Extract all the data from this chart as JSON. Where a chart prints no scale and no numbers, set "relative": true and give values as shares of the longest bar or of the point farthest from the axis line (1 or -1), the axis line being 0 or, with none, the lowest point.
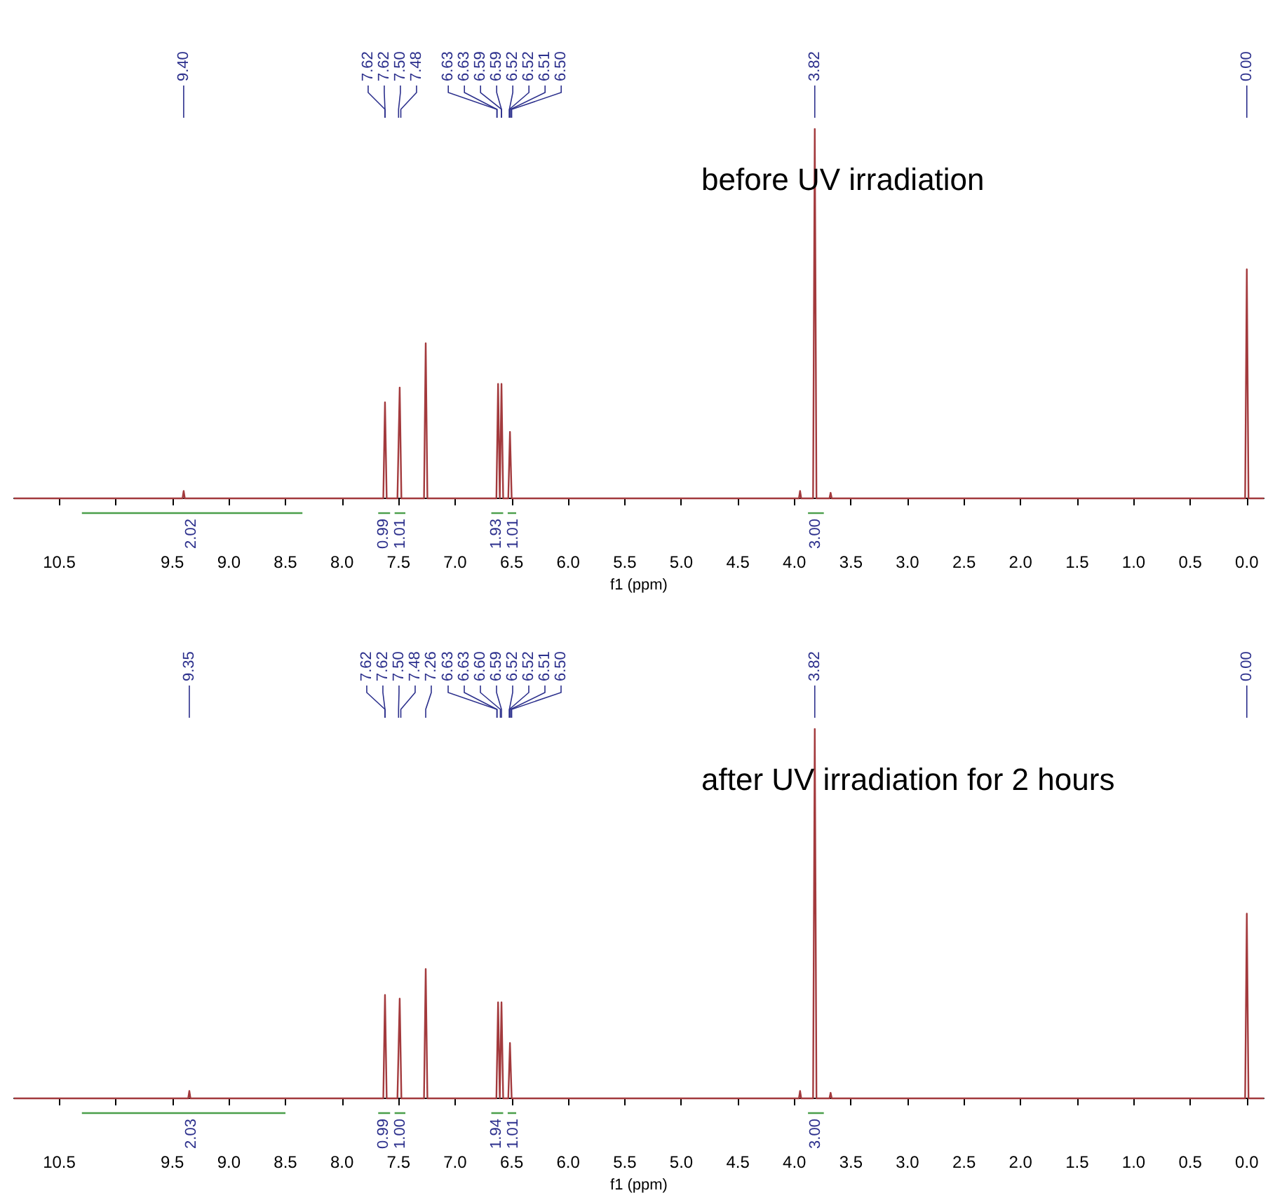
{
  "chart_data": [
    {
      "type": "line",
      "title": "before UV irradiation",
      "xlabel": "f1 (ppm)",
      "relative": true,
      "marker": "none",
      "xlim": [
        10.9,
        -0.15
      ],
      "xticks": [
        10.5,
        {
          "value": 10,
          "label": null
        },
        9.5,
        {
          "value": 9,
          "label": "9.0"
        },
        8.5,
        {
          "value": 8,
          "label": "8.0"
        },
        7.5,
        {
          "value": 7,
          "label": "7.0"
        },
        6.5,
        {
          "value": 6,
          "label": "6.0"
        },
        5.5,
        {
          "value": 5,
          "label": "5.0"
        },
        4.5,
        {
          "value": 4,
          "label": "4.0"
        },
        3.5,
        {
          "value": 3,
          "label": "3.0"
        },
        2.5,
        {
          "value": 2,
          "label": "2.0"
        },
        1.5,
        {
          "value": 1,
          "label": "1.0"
        },
        0.5,
        {
          "value": 0,
          "label": "0.0"
        }
      ],
      "series": [
        {
          "color": "#a33a3d",
          "x": [
            10.9,
            9.41,
            9.4,
            9.39,
            7.635,
            7.62,
            7.605,
            7.51,
            7.49,
            7.475,
            7.275,
            7.26,
            7.245,
            6.635,
            6.62,
            6.605,
            6.59,
            6.575,
            6.53,
            6.515,
            6.5,
            3.96,
            3.95,
            3.94,
            3.835,
            3.82,
            3.805,
            3.69,
            3.68,
            3.67,
            0.015,
            0.0,
            -0.015,
            -0.15
          ],
          "values": [
            0,
            0,
            0.02,
            0,
            0,
            0.26,
            0,
            0,
            0.3,
            0,
            0,
            0.42,
            0,
            0,
            0.31,
            0,
            0.31,
            0,
            0,
            0.18,
            0,
            0,
            0.02,
            0,
            0,
            1,
            0,
            0,
            0.015,
            0,
            0,
            0.62,
            0,
            0
          ]
        },
        {
          "color": "#4a9e4a",
          "x": [
            10.3,
            8.35
          ],
          "values": [
            -0.04,
            -0.04
          ]
        },
        {
          "color": "#4a9e4a",
          "x": [
            7.68,
            7.575
          ],
          "values": [
            -0.04,
            -0.04
          ]
        },
        {
          "color": "#4a9e4a",
          "x": [
            7.535,
            7.44
          ],
          "values": [
            -0.04,
            -0.04
          ]
        },
        {
          "color": "#4a9e4a",
          "x": [
            6.68,
            6.575
          ],
          "values": [
            -0.04,
            -0.04
          ]
        },
        {
          "color": "#4a9e4a",
          "x": [
            6.535,
            6.46
          ],
          "values": [
            -0.04,
            -0.04
          ]
        },
        {
          "color": "#4a9e4a",
          "x": [
            3.88,
            3.74
          ],
          "values": [
            -0.04,
            -0.04
          ]
        }
      ],
      "annotations": [
        {
          "text": "9.40",
          "x": 9.4
        },
        {
          "text": "7.62",
          "x": 7.62
        },
        {
          "text": "7.62",
          "x": 7.62
        },
        {
          "text": "7.50",
          "x": 7.5
        },
        {
          "text": "7.48",
          "x": 7.48
        },
        {
          "text": "6.63",
          "x": 6.63
        },
        {
          "text": "6.63",
          "x": 6.63
        },
        {
          "text": "6.59",
          "x": 6.59
        },
        {
          "text": "6.59",
          "x": 6.59
        },
        {
          "text": "6.52",
          "x": 6.52
        },
        {
          "text": "6.52",
          "x": 6.52
        },
        {
          "text": "6.51",
          "x": 6.51
        },
        {
          "text": "6.50",
          "x": 6.5
        },
        {
          "text": "3.82",
          "x": 3.82
        },
        {
          "text": "0.00",
          "x": 0.0
        },
        {
          "text": "2.02",
          "x": 9.33,
          "y": -0.04
        },
        {
          "text": "0.99",
          "x": 7.62,
          "y": -0.04
        },
        {
          "text": "1.01",
          "x": 7.5,
          "y": -0.04
        },
        {
          "text": "1.93",
          "x": 6.62,
          "y": -0.04
        },
        {
          "text": "1.01",
          "x": 6.5,
          "y": -0.04
        },
        {
          "text": "3.00",
          "x": 3.81,
          "y": -0.04
        }
      ]
    },
    {
      "type": "line",
      "title": "after UV irradiation for 2 hours",
      "xlabel": "f1 (ppm)",
      "relative": true,
      "marker": "none",
      "xlim": [
        10.9,
        -0.15
      ],
      "xticks": [
        10.5,
        {
          "value": 10,
          "label": null
        },
        9.5,
        {
          "value": 9,
          "label": "9.0"
        },
        8.5,
        {
          "value": 8,
          "label": "8.0"
        },
        7.5,
        {
          "value": 7,
          "label": "7.0"
        },
        6.5,
        {
          "value": 6,
          "label": "6.0"
        },
        5.5,
        {
          "value": 5,
          "label": "5.0"
        },
        4.5,
        {
          "value": 4,
          "label": "4.0"
        },
        3.5,
        {
          "value": 3,
          "label": "3.0"
        },
        2.5,
        {
          "value": 2,
          "label": "2.0"
        },
        1.5,
        {
          "value": 1,
          "label": "1.0"
        },
        0.5,
        {
          "value": 0,
          "label": "0.0"
        }
      ],
      "series": [
        {
          "color": "#a33a3d",
          "x": [
            10.9,
            9.36,
            9.35,
            9.34,
            7.635,
            7.62,
            7.605,
            7.51,
            7.49,
            7.475,
            7.275,
            7.26,
            7.245,
            6.635,
            6.62,
            6.605,
            6.59,
            6.575,
            6.53,
            6.515,
            6.5,
            3.96,
            3.95,
            3.94,
            3.835,
            3.82,
            3.805,
            3.69,
            3.68,
            3.67,
            0.015,
            0.0,
            -0.015,
            -0.15
          ],
          "values": [
            0,
            0,
            0.02,
            0,
            0,
            0.28,
            0,
            0,
            0.27,
            0,
            0,
            0.35,
            0,
            0,
            0.26,
            0,
            0.26,
            0,
            0,
            0.15,
            0,
            0,
            0.02,
            0,
            0,
            1,
            0,
            0,
            0.015,
            0,
            0,
            0.5,
            0,
            0
          ]
        },
        {
          "color": "#4a9e4a",
          "x": [
            10.3,
            8.5
          ],
          "values": [
            -0.04,
            -0.04
          ]
        },
        {
          "color": "#4a9e4a",
          "x": [
            7.68,
            7.575
          ],
          "values": [
            -0.04,
            -0.04
          ]
        },
        {
          "color": "#4a9e4a",
          "x": [
            7.535,
            7.44
          ],
          "values": [
            -0.04,
            -0.04
          ]
        },
        {
          "color": "#4a9e4a",
          "x": [
            6.68,
            6.575
          ],
          "values": [
            -0.04,
            -0.04
          ]
        },
        {
          "color": "#4a9e4a",
          "x": [
            6.535,
            6.46
          ],
          "values": [
            -0.04,
            -0.04
          ]
        },
        {
          "color": "#4a9e4a",
          "x": [
            3.88,
            3.74
          ],
          "values": [
            -0.04,
            -0.04
          ]
        }
      ],
      "annotations": [
        {
          "text": "9.35",
          "x": 9.35
        },
        {
          "text": "7.62",
          "x": 7.62
        },
        {
          "text": "7.62",
          "x": 7.62
        },
        {
          "text": "7.50",
          "x": 7.5
        },
        {
          "text": "7.48",
          "x": 7.48
        },
        {
          "text": "7.26",
          "x": 7.26
        },
        {
          "text": "6.63",
          "x": 6.63
        },
        {
          "text": "6.63",
          "x": 6.63
        },
        {
          "text": "6.60",
          "x": 6.6
        },
        {
          "text": "6.59",
          "x": 6.59
        },
        {
          "text": "6.52",
          "x": 6.52
        },
        {
          "text": "6.52",
          "x": 6.52
        },
        {
          "text": "6.51",
          "x": 6.51
        },
        {
          "text": "6.50",
          "x": 6.5
        },
        {
          "text": "3.82",
          "x": 3.82
        },
        {
          "text": "0.00",
          "x": 0.0
        },
        {
          "text": "2.03",
          "x": 9.33,
          "y": -0.04
        },
        {
          "text": "0.99",
          "x": 7.62,
          "y": -0.04
        },
        {
          "text": "1.00",
          "x": 7.5,
          "y": -0.04
        },
        {
          "text": "1.94",
          "x": 6.62,
          "y": -0.04
        },
        {
          "text": "1.01",
          "x": 6.5,
          "y": -0.04
        },
        {
          "text": "3.00",
          "x": 3.81,
          "y": -0.04
        }
      ]
    }
  ]
}
